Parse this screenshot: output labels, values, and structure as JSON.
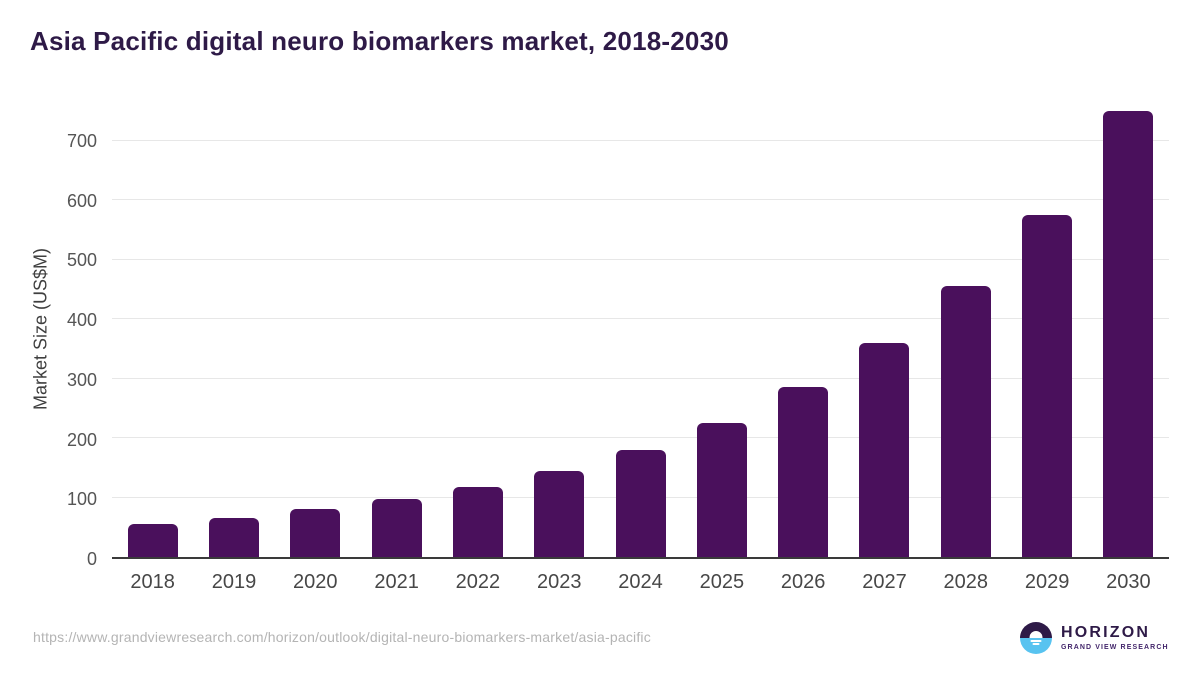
{
  "header": {
    "title": "Asia Pacific digital neuro biomarkers market, 2018-2030"
  },
  "footer": {
    "source_url": "https://www.grandviewresearch.com/horizon/outlook/digital-neuro-biomarkers-market/asia-pacific",
    "logo": {
      "brand": "HORIZON",
      "sub_brand": "GRAND VIEW RESEARCH",
      "icon": "horizon-sun-over-water-icon"
    }
  },
  "colors": {
    "bar": "#4a105c",
    "title_text": "#2e1a47",
    "axis_line": "#3a3a3a",
    "gridline": "#e7e7e7",
    "tick_text": "#555555",
    "url_text": "#b4b4b4",
    "logo_purple": "#2e1a47",
    "logo_blue": "#58c3f0"
  },
  "chart_data": {
    "type": "bar",
    "title": "Asia Pacific digital neuro biomarkers market, 2018-2030",
    "categories": [
      "2018",
      "2019",
      "2020",
      "2021",
      "2022",
      "2023",
      "2024",
      "2025",
      "2026",
      "2027",
      "2028",
      "2029",
      "2030"
    ],
    "values": [
      55,
      65,
      80,
      97,
      118,
      145,
      180,
      225,
      285,
      360,
      455,
      575,
      750
    ],
    "xlabel": "",
    "ylabel": "Market Size (US$M)",
    "ylim": [
      0,
      770
    ],
    "yticks": [
      0,
      100,
      200,
      300,
      400,
      500,
      600,
      700
    ],
    "grid": true,
    "legend": false,
    "bar_color": "#4a105c"
  }
}
